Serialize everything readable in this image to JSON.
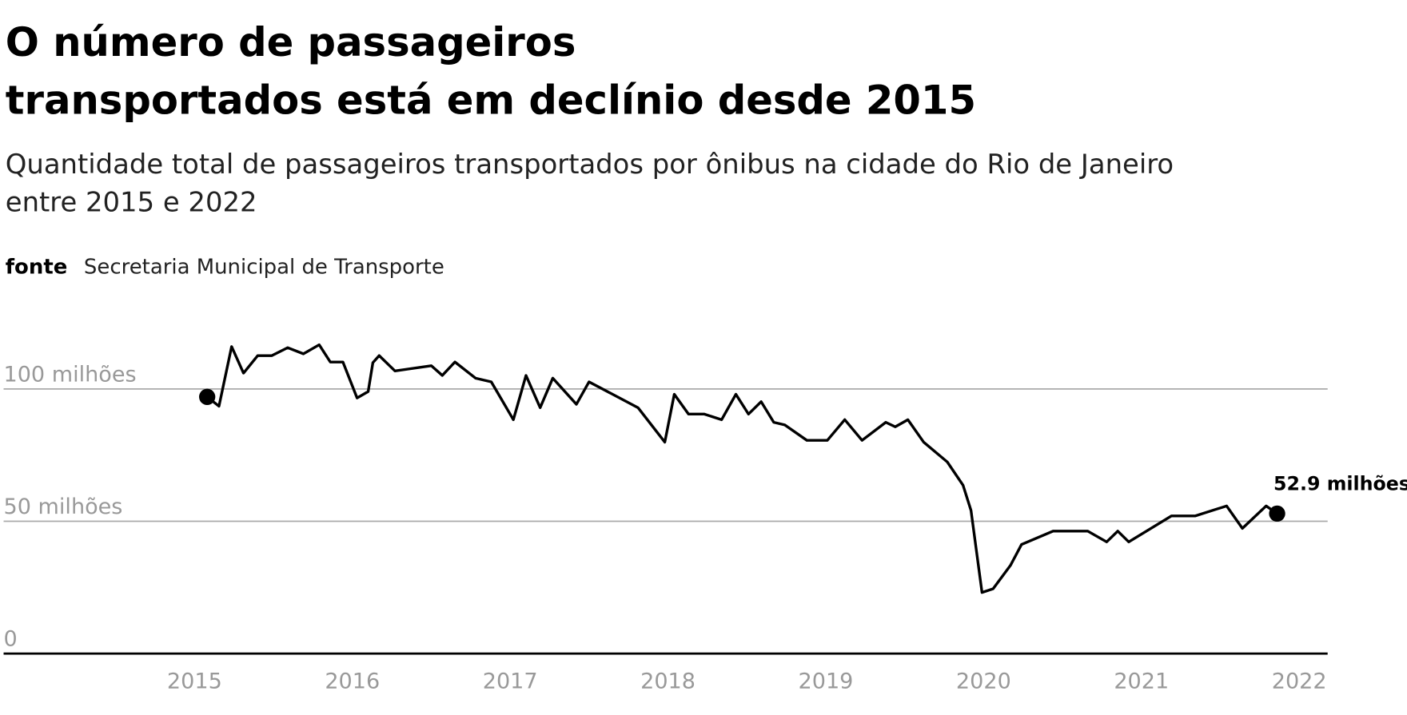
{
  "chart_data": {
    "type": "line",
    "title": [
      "O número de passageiros",
      "transportados está em declínio desde 2015"
    ],
    "subtitle": [
      "Quantidade total de passageiros transportados por ônibus na cidade do Rio de Janeiro",
      "entre 2015 e 2022"
    ],
    "source": {
      "label": "fonte",
      "text": "Secretaria Municipal de Transporte"
    },
    "end_label": "52.9 milhões",
    "color": "#000000",
    "x": [
      2015.08,
      2015.155,
      2015.235,
      2015.31,
      2015.4,
      2015.49,
      2015.59,
      2015.69,
      2015.79,
      2015.86,
      2015.94,
      2016.03,
      2016.1,
      2016.13,
      2016.17,
      2016.27,
      2016.5,
      2016.57,
      2016.65,
      2016.78,
      2016.88,
      2017.02,
      2017.1,
      2017.19,
      2017.27,
      2017.42,
      2017.5,
      2017.81,
      2017.98,
      2018.04,
      2018.13,
      2018.23,
      2018.34,
      2018.43,
      2018.51,
      2018.59,
      2018.67,
      2018.74,
      2018.88,
      2019.01,
      2019.12,
      2019.23,
      2019.38,
      2019.44,
      2019.52,
      2019.62,
      2019.77,
      2019.87,
      2019.92,
      2019.99,
      2020.06,
      2020.17,
      2020.24,
      2020.44,
      2020.66,
      2020.78,
      2020.85,
      2020.92,
      2021.19,
      2021.34,
      2021.54,
      2021.64,
      2021.79,
      2021.86
    ],
    "values": [
      97,
      93.5,
      116,
      106,
      112.6,
      112.6,
      115.6,
      113.3,
      116.7,
      110.2,
      110.2,
      96.6,
      99,
      109.9,
      112.6,
      106.8,
      108.8,
      105.1,
      110.2,
      104.1,
      102.7,
      88.4,
      105.1,
      92.9,
      104.1,
      94.2,
      102.7,
      92.9,
      79.9,
      98,
      90.5,
      90.5,
      88.4,
      98,
      90.5,
      95.2,
      87.4,
      86.4,
      80.6,
      80.6,
      88.4,
      80.6,
      87.4,
      85.7,
      88.4,
      79.9,
      72.4,
      63.6,
      54.1,
      23.1,
      24.5,
      33.3,
      41.2,
      46.3,
      46.3,
      42.2,
      46.3,
      42.2,
      52,
      52,
      55.8,
      47.3,
      55.8,
      52.9
    ],
    "xlim": [
      2013.79,
      2022.18
    ],
    "xticks": [
      2015,
      2016,
      2017,
      2018,
      2019,
      2020,
      2021,
      2022
    ],
    "ylim": [
      0,
      125
    ],
    "yticks": [
      0,
      {
        "value": 50,
        "label": "50 milhões"
      },
      {
        "value": 100,
        "label": "100 milhões"
      }
    ],
    "grid": true
  }
}
